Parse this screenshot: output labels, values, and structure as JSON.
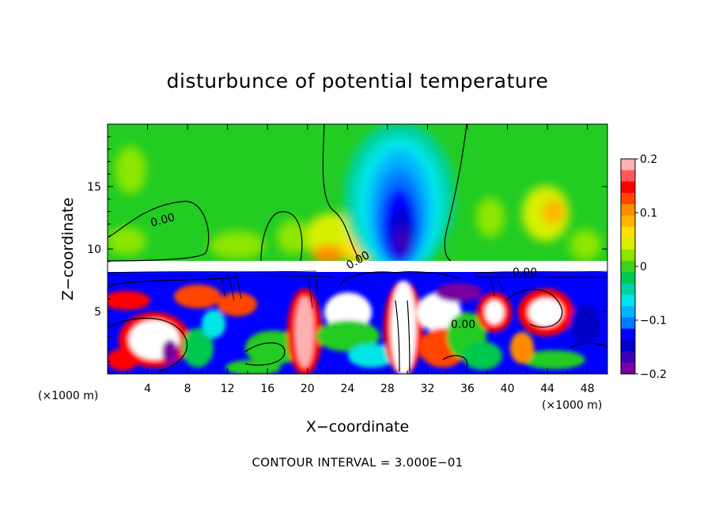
{
  "chart_data": {
    "type": "heatmap",
    "title": "disturbunce of potential temperature",
    "xlabel": "X−coordinate",
    "ylabel": "Z−coordinate",
    "x_unit": "(×1000 m)",
    "y_unit": "(×1000 m)",
    "x_ticks": [
      4,
      8,
      12,
      16,
      20,
      24,
      28,
      32,
      36,
      40,
      44,
      48
    ],
    "y_ticks": [
      5,
      10,
      15
    ],
    "xlim": [
      0,
      50
    ],
    "ylim": [
      0,
      20
    ],
    "colorbar": {
      "ticks": [
        "0.2",
        "0.1",
        "0",
        "−0.1",
        "−0.2"
      ],
      "range": [
        -0.2,
        0.2
      ],
      "colors": [
        "#ffb0b0",
        "#ff5a5a",
        "#ff0000",
        "#ff4500",
        "#ff8c00",
        "#ffb400",
        "#ffe000",
        "#d8f000",
        "#8ce600",
        "#3cd21e",
        "#00c850",
        "#00d2a0",
        "#00e6e6",
        "#00b4ff",
        "#0078ff",
        "#0000ff",
        "#0000c8",
        "#3c00b4",
        "#7800a0"
      ]
    },
    "contour_labels": [
      "0.00",
      "0.00",
      "0.00",
      "0.00"
    ],
    "contour_interval": "CONTOUR INTERVAL = 3.000E−01"
  }
}
